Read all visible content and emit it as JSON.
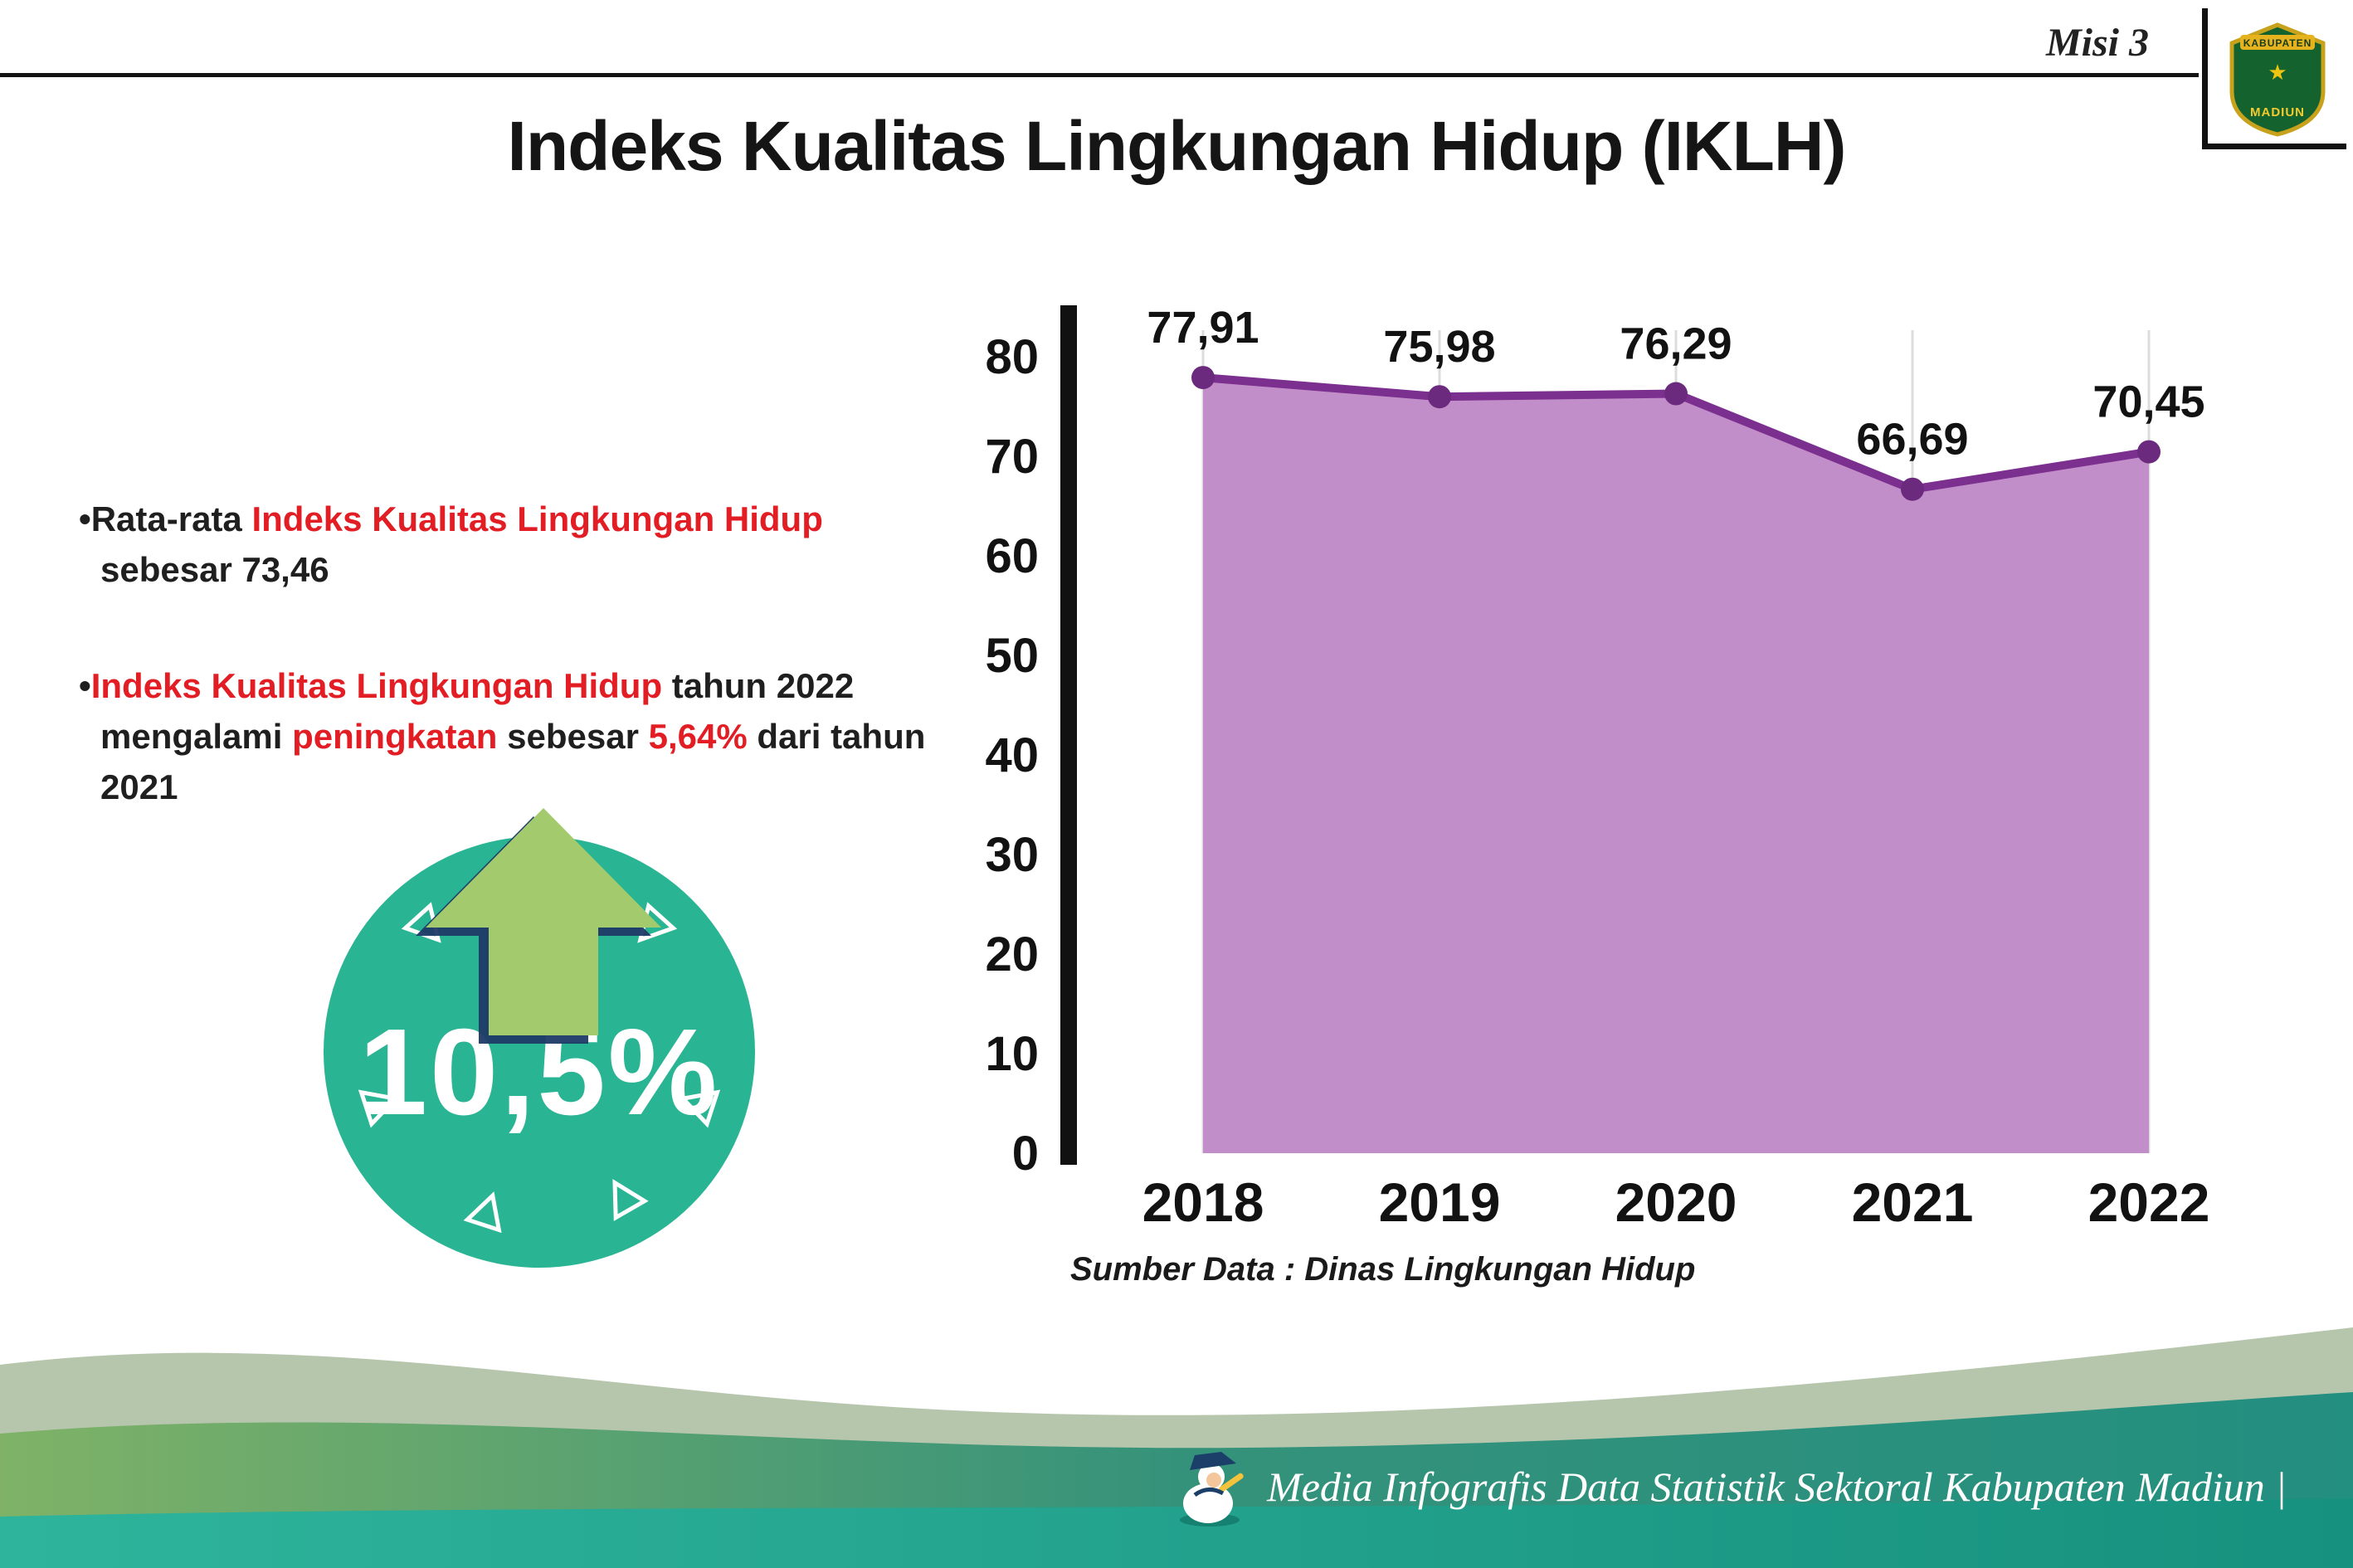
{
  "header": {
    "misi_label": "Misi 3",
    "title": "Indeks Kualitas Lingkungan Hidup (IKLH)",
    "logo": {
      "name": "kabupaten-madiun-emblem",
      "text_top": "KABUPATEN",
      "text_bottom": "MADIUN"
    }
  },
  "left_panel": {
    "bullet1": {
      "bullet": "•",
      "seg1": "Rata-rata ",
      "seg2_red": "Indeks Kualitas Lingkungan Hidup",
      "seg3": " sebesar 73,46"
    },
    "bullet2": {
      "bullet": "•",
      "seg1_red": "Indeks Kualitas Lingkungan Hidup",
      "seg2": " tahun 2022 mengalami ",
      "seg3_red": "peningkatan",
      "seg4": " sebesar ",
      "seg5_red": "5,64%",
      "seg6": " dari tahun 2021"
    },
    "badge": {
      "value": "10,5%",
      "circle_color": "#29b494",
      "arrow_color": "#a3ca6c"
    },
    "accent_red": "#e21d24"
  },
  "chart_data": {
    "type": "area",
    "title": "Indeks Kualitas Lingkungan Hidup (IKLH)",
    "x": [
      "2018",
      "2019",
      "2020",
      "2021",
      "2022"
    ],
    "values": [
      77.91,
      75.98,
      76.29,
      66.69,
      70.45
    ],
    "point_labels": [
      "77,91",
      "75,98",
      "76,29",
      "66,69",
      "70,45"
    ],
    "ylim": [
      0,
      80
    ],
    "yticks": [
      0,
      10,
      20,
      30,
      40,
      50,
      60,
      70,
      80
    ],
    "grid": "vertical-light",
    "legend": "none",
    "line_color": "#7b2f8e",
    "fill_color": "#c28ec9",
    "marker_color": "#6b2a7d",
    "axis_color": "#111111",
    "source": "Sumber Data : Dinas Lingkungan Hidup"
  },
  "footer": {
    "text": "Media Infografis Data Statistik Sektoral Kabupaten Madiun |",
    "band_teal": "#2eb49c",
    "band_green": "#7fb267"
  }
}
